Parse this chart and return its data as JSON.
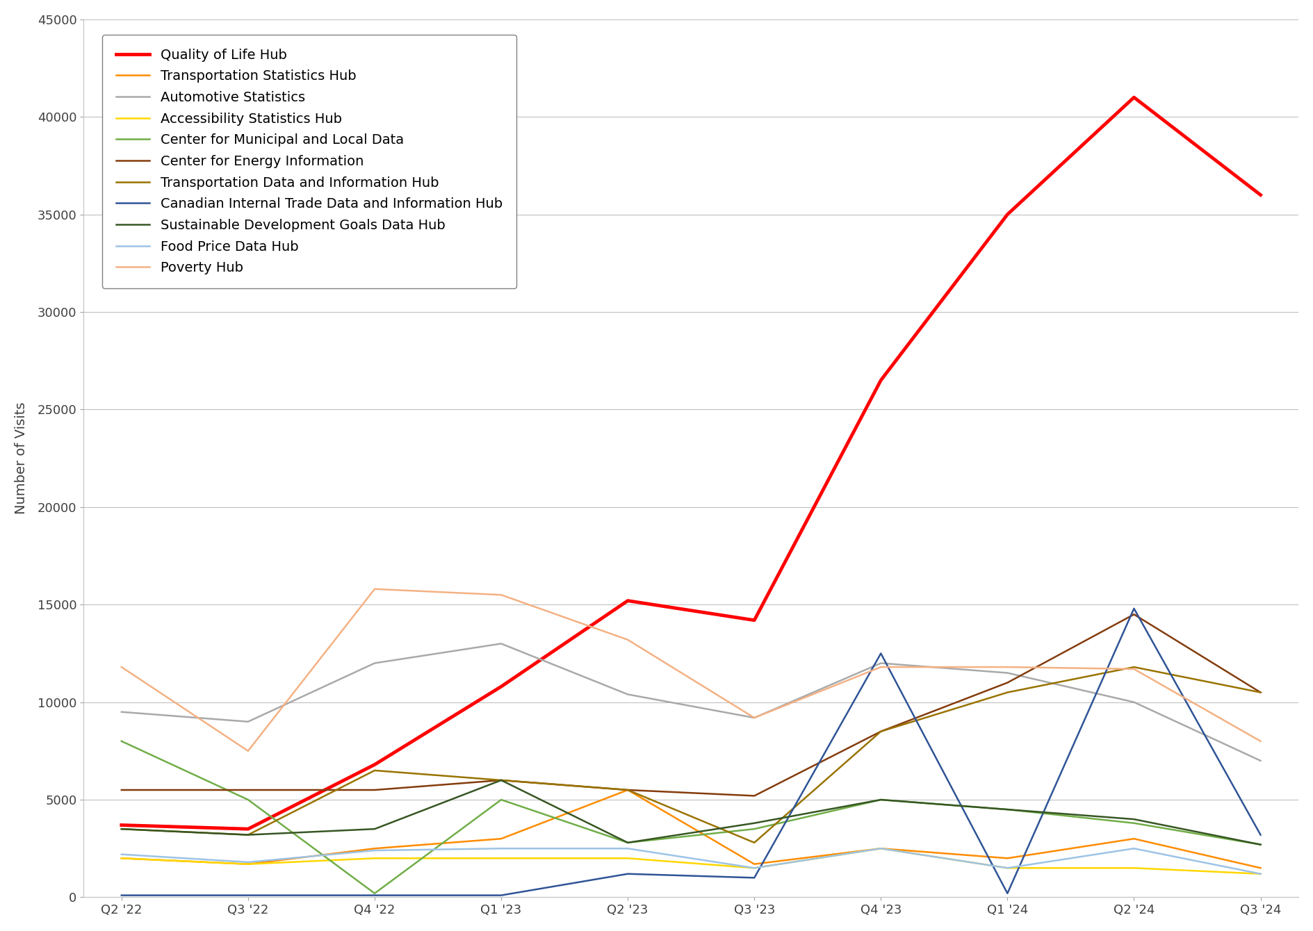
{
  "x_labels": [
    "Q2 '22",
    "Q3 '22",
    "Q4 '22",
    "Q1 '23",
    "Q2 '23",
    "Q3 '23",
    "Q4 '23",
    "Q1 '24",
    "Q2 '24",
    "Q3 '24"
  ],
  "series": [
    {
      "name": "Quality of Life Hub",
      "color": "#FF0000",
      "linewidth": 3.5,
      "values": [
        3700,
        3500,
        6800,
        10800,
        15200,
        14200,
        26500,
        35000,
        41000,
        36000
      ]
    },
    {
      "name": "Transportation Statistics Hub",
      "color": "#FF8C00",
      "linewidth": 1.8,
      "values": [
        2000,
        1700,
        2500,
        3000,
        5500,
        1700,
        2500,
        2000,
        3000,
        1500
      ]
    },
    {
      "name": "Automotive Statistics",
      "color": "#A9A9A9",
      "linewidth": 1.8,
      "values": [
        9500,
        9000,
        12000,
        13000,
        10400,
        9200,
        12000,
        11500,
        10000,
        7000
      ]
    },
    {
      "name": "Accessibility Statistics Hub",
      "color": "#FFD700",
      "linewidth": 1.8,
      "values": [
        2000,
        1700,
        2000,
        2000,
        2000,
        1500,
        2500,
        1500,
        1500,
        1200
      ]
    },
    {
      "name": "Center for Municipal and Local Data",
      "color": "#70AD47",
      "linewidth": 1.8,
      "values": [
        8000,
        5000,
        200,
        5000,
        2800,
        3500,
        5000,
        4500,
        3800,
        2700
      ]
    },
    {
      "name": "Center for Energy Information",
      "color": "#843C0C",
      "linewidth": 1.8,
      "values": [
        5500,
        5500,
        5500,
        6000,
        5500,
        5200,
        8500,
        11000,
        14500,
        10500
      ]
    },
    {
      "name": "Transportation Data and Information Hub",
      "color": "#997300",
      "linewidth": 1.8,
      "values": [
        3500,
        3200,
        6500,
        6000,
        5500,
        2800,
        8500,
        10500,
        11800,
        10500
      ]
    },
    {
      "name": "Canadian Internal Trade Data and Information Hub",
      "color": "#2F5496",
      "linewidth": 1.8,
      "values": [
        100,
        100,
        100,
        100,
        1200,
        1000,
        12500,
        200,
        14800,
        3200
      ]
    },
    {
      "name": "Sustainable Development Goals Data Hub",
      "color": "#375623",
      "linewidth": 1.8,
      "values": [
        3500,
        3200,
        3500,
        6000,
        2800,
        3800,
        5000,
        4500,
        4000,
        2700
      ]
    },
    {
      "name": "Food Price Data Hub",
      "color": "#9DC3E6",
      "linewidth": 1.8,
      "values": [
        2200,
        1800,
        2400,
        2500,
        2500,
        1500,
        2500,
        1500,
        2500,
        1200
      ]
    },
    {
      "name": "Poverty Hub",
      "color": "#F4B183",
      "linewidth": 1.8,
      "values": [
        11800,
        7500,
        15800,
        15500,
        13200,
        9200,
        11800,
        11800,
        11700,
        8000
      ]
    }
  ],
  "ylabel": "Number of Visits",
  "ylim": [
    0,
    45000
  ],
  "yticks": [
    0,
    5000,
    10000,
    15000,
    20000,
    25000,
    30000,
    35000,
    40000,
    45000
  ],
  "background_color": "#FFFFFF",
  "plot_background": "#FFFFFF",
  "grid_color": "#C0C0C0",
  "legend_loc": "upper left",
  "legend_fontsize": 14,
  "axis_fontsize": 14,
  "tick_fontsize": 13
}
